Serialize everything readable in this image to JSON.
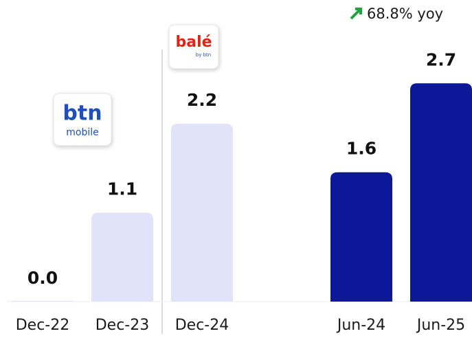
{
  "chart_data": {
    "type": "bar",
    "categories": [
      "Dec-22",
      "Dec-23",
      "Dec-24",
      null,
      "Jun-24",
      "Jun-25"
    ],
    "values": [
      0.0,
      1.1,
      2.2,
      null,
      1.6,
      2.7
    ],
    "value_labels": [
      "0.0",
      "1.1",
      "2.2",
      null,
      "1.6",
      "2.7"
    ],
    "colors": [
      "#e1e4f8",
      "#e1e4f8",
      "#e1e4f8",
      null,
      "#0d1899",
      "#0d1899"
    ],
    "ylim": [
      0,
      3
    ],
    "annotation": "68.8% yoy",
    "logos": [
      {
        "text": "btn",
        "subtext": "mobile"
      },
      {
        "text": "balé",
        "subtext": "by btn"
      }
    ]
  }
}
